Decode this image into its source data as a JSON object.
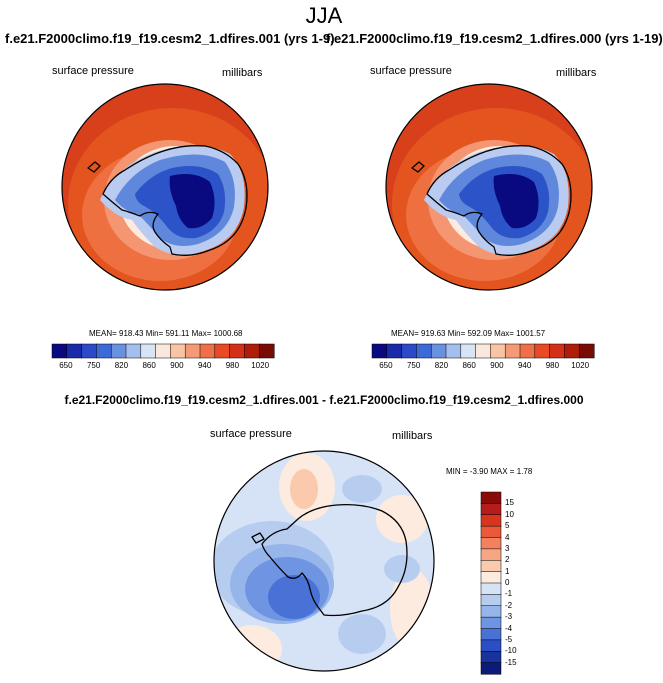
{
  "title": "JJA",
  "panels": [
    {
      "run_title": "f.e21.F2000climo.f19_f19.cesm2_1.dfires.001 (yrs 1-9)",
      "variable": "surface pressure",
      "units": "millibars",
      "stats": "MEAN= 918.43  Min= 591.11  Max= 1000.68"
    },
    {
      "run_title": "f.e21.F2000climo.f19_f19.cesm2_1.dfires.000 (yrs 1-19)",
      "variable": "surface pressure",
      "units": "millibars",
      "stats": "MEAN= 919.63  Min= 592.09  Max= 1001.57"
    }
  ],
  "colorbar_top": {
    "colors": [
      "#0a0a80",
      "#1a2aa8",
      "#2a4ac8",
      "#3c6ad8",
      "#6a90e0",
      "#a4bfec",
      "#d6e4f6",
      "#fbe8dc",
      "#f8c4a4",
      "#f49a74",
      "#ef7048",
      "#e84a26",
      "#d43018",
      "#b01c0c",
      "#7a0a04"
    ],
    "labels": [
      "650",
      "750",
      "820",
      "860",
      "900",
      "940",
      "980",
      "1020"
    ]
  },
  "diff": {
    "title": "f.e21.F2000climo.f19_f19.cesm2_1.dfires.001 - f.e21.F2000climo.f19_f19.cesm2_1.dfires.000",
    "variable": "surface pressure",
    "units": "millibars",
    "stats": "MIN =  -3.90 MAX =   1.78",
    "colorbar": {
      "colors": [
        "#8a0a0a",
        "#b51c1c",
        "#d8351f",
        "#ea5a3a",
        "#f3805f",
        "#f6a684",
        "#fac9ae",
        "#fcebde",
        "#d6e3f6",
        "#b7cdf0",
        "#96b5ea",
        "#6f95e2",
        "#4a72d6",
        "#2a4fc4",
        "#18329e",
        "#0c1a78"
      ],
      "labels": [
        "15",
        "10",
        "5",
        "4",
        "3",
        "2",
        "1",
        "0",
        "-1",
        "-2",
        "-3",
        "-4",
        "-5",
        "-10",
        "-15"
      ]
    }
  }
}
